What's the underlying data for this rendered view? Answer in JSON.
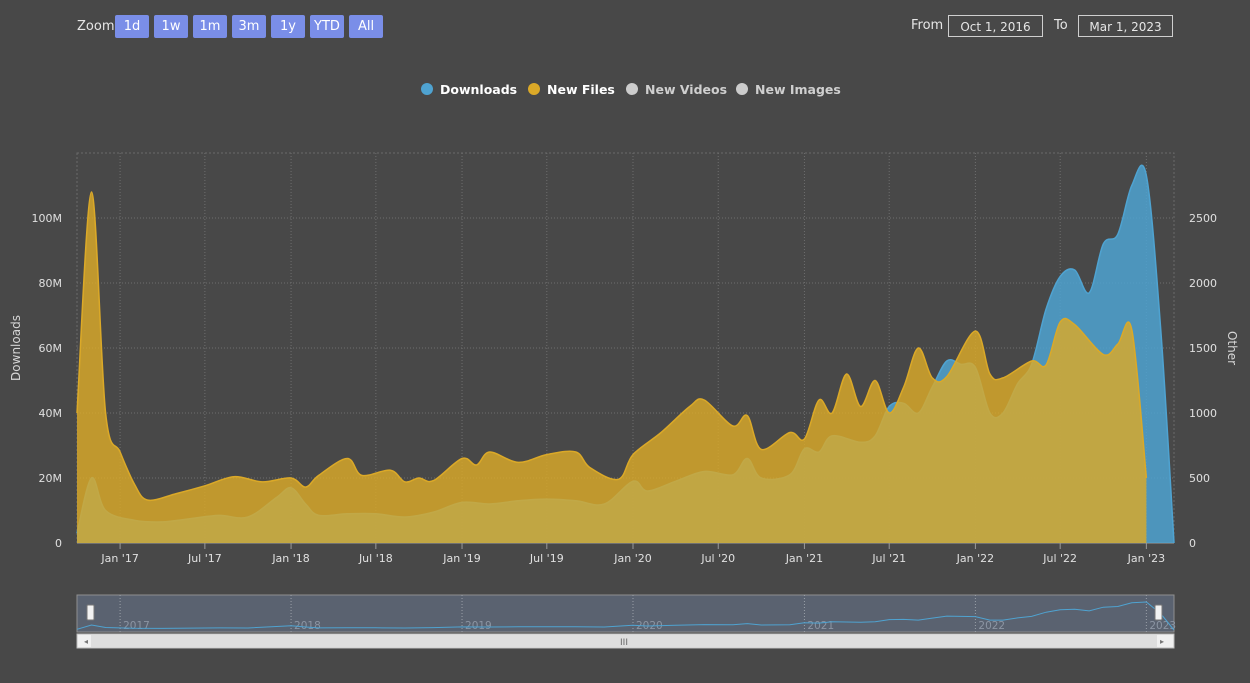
{
  "rangeSelector": {
    "zoom_label": "Zoom",
    "buttons": [
      "1d",
      "1w",
      "1m",
      "3m",
      "1y",
      "YTD",
      "All"
    ],
    "from_label": "From",
    "from_value": "Oct 1, 2016",
    "to_label": "To",
    "to_value": "Mar 1, 2023"
  },
  "colors": {
    "downloads": "#4fa3d1",
    "new_files": "#dba928",
    "inactive": "#cccccc",
    "background": "#484848"
  },
  "chart_data": {
    "type": "area",
    "title": "",
    "xlabel": "",
    "ylabel": "Downloads",
    "ylabel_right": "Other",
    "x_ticks": [
      "Jan '17",
      "Jul '17",
      "Jan '18",
      "Jul '18",
      "Jan '19",
      "Jul '19",
      "Jan '20",
      "Jul '20",
      "Jan '21",
      "Jul '21",
      "Jan '22",
      "Jul '22",
      "Jan '23"
    ],
    "y_ticks_left": [
      "0",
      "20M",
      "40M",
      "60M",
      "80M",
      "100M"
    ],
    "y_ticks_right": [
      "0",
      "500",
      "1000",
      "1500",
      "2000",
      "2500"
    ],
    "ylim": [
      0,
      120000000
    ],
    "ylim_right": [
      0,
      3000
    ],
    "grid": true,
    "legend_position": "top-center",
    "series": [
      {
        "name": "Downloads",
        "axis": "left",
        "visible": true,
        "color": "#4fa3d1",
        "points": [
          [
            "2016-10-01",
            3000000
          ],
          [
            "2016-11-01",
            20000000
          ],
          [
            "2016-12-01",
            10000000
          ],
          [
            "2017-02-01",
            7000000
          ],
          [
            "2017-04-01",
            6500000
          ],
          [
            "2017-06-01",
            7500000
          ],
          [
            "2017-08-01",
            8500000
          ],
          [
            "2017-10-01",
            8000000
          ],
          [
            "2017-12-01",
            14000000
          ],
          [
            "2018-01-01",
            17000000
          ],
          [
            "2018-02-01",
            12000000
          ],
          [
            "2018-03-01",
            8500000
          ],
          [
            "2018-05-01",
            9000000
          ],
          [
            "2018-07-01",
            9000000
          ],
          [
            "2018-09-01",
            8000000
          ],
          [
            "2018-11-01",
            9500000
          ],
          [
            "2019-01-01",
            12500000
          ],
          [
            "2019-03-01",
            12000000
          ],
          [
            "2019-05-01",
            13000000
          ],
          [
            "2019-07-01",
            13500000
          ],
          [
            "2019-09-01",
            13000000
          ],
          [
            "2019-11-01",
            12000000
          ],
          [
            "2020-01-01",
            19000000
          ],
          [
            "2020-02-01",
            16000000
          ],
          [
            "2020-04-01",
            19000000
          ],
          [
            "2020-06-01",
            22000000
          ],
          [
            "2020-08-01",
            21000000
          ],
          [
            "2020-09-01",
            26000000
          ],
          [
            "2020-10-01",
            20000000
          ],
          [
            "2020-12-01",
            21000000
          ],
          [
            "2021-01-01",
            29000000
          ],
          [
            "2021-02-01",
            28000000
          ],
          [
            "2021-03-01",
            33000000
          ],
          [
            "2021-05-01",
            31000000
          ],
          [
            "2021-06-01",
            33000000
          ],
          [
            "2021-07-01",
            42000000
          ],
          [
            "2021-08-01",
            43000000
          ],
          [
            "2021-09-01",
            40000000
          ],
          [
            "2021-10-01",
            48000000
          ],
          [
            "2021-11-01",
            56000000
          ],
          [
            "2021-12-01",
            55000000
          ],
          [
            "2022-01-01",
            54000000
          ],
          [
            "2022-02-01",
            40000000
          ],
          [
            "2022-03-01",
            40000000
          ],
          [
            "2022-04-01",
            49000000
          ],
          [
            "2022-05-01",
            55000000
          ],
          [
            "2022-06-01",
            72000000
          ],
          [
            "2022-07-01",
            82000000
          ],
          [
            "2022-08-01",
            84000000
          ],
          [
            "2022-09-01",
            77000000
          ],
          [
            "2022-10-01",
            92000000
          ],
          [
            "2022-11-01",
            95000000
          ],
          [
            "2022-12-01",
            110000000
          ],
          [
            "2023-01-01",
            113000000
          ],
          [
            "2023-02-01",
            65000000
          ],
          [
            "2023-03-01",
            0
          ]
        ]
      },
      {
        "name": "New Files",
        "axis": "right",
        "visible": true,
        "color": "#dba928",
        "points": [
          [
            "2016-10-01",
            1000
          ],
          [
            "2016-11-01",
            2700
          ],
          [
            "2016-12-01",
            1000
          ],
          [
            "2017-01-01",
            700
          ],
          [
            "2017-02-01",
            450
          ],
          [
            "2017-03-01",
            330
          ],
          [
            "2017-05-01",
            380
          ],
          [
            "2017-07-01",
            440
          ],
          [
            "2017-09-01",
            510
          ],
          [
            "2017-11-01",
            470
          ],
          [
            "2018-01-01",
            500
          ],
          [
            "2018-02-01",
            430
          ],
          [
            "2018-03-01",
            520
          ],
          [
            "2018-05-01",
            650
          ],
          [
            "2018-06-01",
            520
          ],
          [
            "2018-08-01",
            560
          ],
          [
            "2018-09-01",
            470
          ],
          [
            "2018-10-01",
            500
          ],
          [
            "2018-11-01",
            480
          ],
          [
            "2019-01-01",
            650
          ],
          [
            "2019-02-01",
            600
          ],
          [
            "2019-03-01",
            700
          ],
          [
            "2019-05-01",
            620
          ],
          [
            "2019-07-01",
            680
          ],
          [
            "2019-09-01",
            700
          ],
          [
            "2019-10-01",
            580
          ],
          [
            "2019-12-01",
            490
          ],
          [
            "2020-01-01",
            680
          ],
          [
            "2020-03-01",
            850
          ],
          [
            "2020-05-01",
            1050
          ],
          [
            "2020-06-01",
            1100
          ],
          [
            "2020-08-01",
            900
          ],
          [
            "2020-09-01",
            980
          ],
          [
            "2020-10-01",
            720
          ],
          [
            "2020-12-01",
            850
          ],
          [
            "2021-01-01",
            800
          ],
          [
            "2021-02-01",
            1100
          ],
          [
            "2021-03-01",
            1000
          ],
          [
            "2021-04-01",
            1300
          ],
          [
            "2021-05-01",
            1050
          ],
          [
            "2021-06-01",
            1250
          ],
          [
            "2021-07-01",
            1000
          ],
          [
            "2021-08-01",
            1200
          ],
          [
            "2021-09-01",
            1500
          ],
          [
            "2021-10-01",
            1270
          ],
          [
            "2021-11-01",
            1280
          ],
          [
            "2022-01-01",
            1630
          ],
          [
            "2022-02-01",
            1300
          ],
          [
            "2022-03-01",
            1270
          ],
          [
            "2022-05-01",
            1400
          ],
          [
            "2022-06-01",
            1370
          ],
          [
            "2022-07-01",
            1700
          ],
          [
            "2022-08-01",
            1680
          ],
          [
            "2022-10-01",
            1450
          ],
          [
            "2022-11-01",
            1530
          ],
          [
            "2022-12-01",
            1640
          ],
          [
            "2023-01-01",
            500
          ]
        ]
      },
      {
        "name": "New Videos",
        "axis": "right",
        "visible": false,
        "color": "#cccccc",
        "points": []
      },
      {
        "name": "New Images",
        "axis": "right",
        "visible": false,
        "color": "#cccccc",
        "points": []
      }
    ],
    "navigator": {
      "year_labels": [
        "2017",
        "2018",
        "2019",
        "2020",
        "2021",
        "2022",
        "2023"
      ],
      "scrollbar_grip": "III"
    }
  }
}
